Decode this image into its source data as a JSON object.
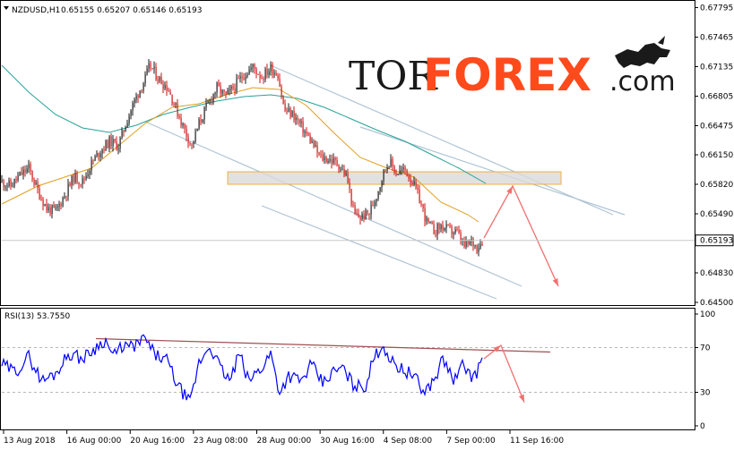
{
  "header": {
    "symbol": "NZDUSD,H1",
    "ohlc": "0.65155 0.65207 0.65146 0.65193"
  },
  "logo": {
    "tor": "TOR",
    "forex": "FOREX",
    "com": ".com"
  },
  "rsi_header": "RSI(13) 53.7550",
  "colors": {
    "bull": "#1a1a1a",
    "bear": "#cc1111",
    "ma_slow": "#2aa198",
    "ma_fast": "#e0a020",
    "rsi": "#0000ff",
    "channel": "#b0c4d4",
    "arrow": "#f07070",
    "zone_fill": "#d9d9d9",
    "zone_border": "#f0b040",
    "rsi_trend": "#a05050",
    "logo_orange": "#ff4a1c"
  },
  "chart_data": [
    {
      "type": "candlestick",
      "title": "NZDUSD,H1",
      "price_axis_ticks": [
        "0.67795",
        "0.67465",
        "0.67135",
        "0.66805",
        "0.66475",
        "0.66150",
        "0.65820",
        "0.65490",
        "0.65193",
        "0.64830",
        "0.64500"
      ],
      "current_price": "0.65193",
      "x_tick_labels": [
        "13 Aug 2018",
        "16 Aug 00:00",
        "20 Aug 16:00",
        "23 Aug 08:00",
        "28 Aug 00:00",
        "30 Aug 16:00",
        "4 Sep 08:00",
        "7 Sep 00:00",
        "11 Sep 16:00"
      ],
      "ylim": [
        0.645,
        0.678
      ],
      "price_path": [
        [
          0,
          0.6585
        ],
        [
          10,
          0.658
        ],
        [
          20,
          0.6592
        ],
        [
          30,
          0.66
        ],
        [
          40,
          0.6575
        ],
        [
          50,
          0.6555
        ],
        [
          60,
          0.6552
        ],
        [
          70,
          0.657
        ],
        [
          80,
          0.659
        ],
        [
          90,
          0.6585
        ],
        [
          100,
          0.6605
        ],
        [
          110,
          0.662
        ],
        [
          120,
          0.663
        ],
        [
          130,
          0.6625
        ],
        [
          140,
          0.6655
        ],
        [
          150,
          0.668
        ],
        [
          160,
          0.67
        ],
        [
          165,
          0.6715
        ],
        [
          175,
          0.67
        ],
        [
          185,
          0.669
        ],
        [
          195,
          0.6665
        ],
        [
          205,
          0.664
        ],
        [
          212,
          0.6625
        ],
        [
          220,
          0.665
        ],
        [
          230,
          0.6672
        ],
        [
          240,
          0.669
        ],
        [
          250,
          0.668
        ],
        [
          260,
          0.6692
        ],
        [
          270,
          0.6705
        ],
        [
          280,
          0.6713
        ],
        [
          290,
          0.6702
        ],
        [
          300,
          0.6712
        ],
        [
          308,
          0.6705
        ],
        [
          315,
          0.6665
        ],
        [
          325,
          0.666
        ],
        [
          335,
          0.6645
        ],
        [
          345,
          0.663
        ],
        [
          355,
          0.6612
        ],
        [
          365,
          0.661
        ],
        [
          375,
          0.6605
        ],
        [
          385,
          0.659
        ],
        [
          393,
          0.6548
        ],
        [
          400,
          0.6545
        ],
        [
          410,
          0.655
        ],
        [
          418,
          0.657
        ],
        [
          426,
          0.6595
        ],
        [
          432,
          0.6608
        ],
        [
          440,
          0.6595
        ],
        [
          450,
          0.6598
        ],
        [
          458,
          0.6585
        ],
        [
          466,
          0.6565
        ],
        [
          474,
          0.654
        ],
        [
          482,
          0.653
        ],
        [
          490,
          0.6535
        ],
        [
          500,
          0.653
        ],
        [
          508,
          0.6528
        ],
        [
          516,
          0.6512
        ],
        [
          524,
          0.6518
        ],
        [
          530,
          0.6512
        ],
        [
          536,
          0.6519
        ]
      ],
      "ma_slow": [
        [
          0,
          0.6715
        ],
        [
          30,
          0.6685
        ],
        [
          60,
          0.666
        ],
        [
          90,
          0.6645
        ],
        [
          120,
          0.664
        ],
        [
          150,
          0.6648
        ],
        [
          180,
          0.666
        ],
        [
          210,
          0.6668
        ],
        [
          240,
          0.6675
        ],
        [
          270,
          0.668
        ],
        [
          300,
          0.6682
        ],
        [
          330,
          0.6678
        ],
        [
          360,
          0.6668
        ],
        [
          390,
          0.6655
        ],
        [
          420,
          0.6642
        ],
        [
          450,
          0.663
        ],
        [
          480,
          0.6615
        ],
        [
          510,
          0.66
        ],
        [
          540,
          0.6583
        ]
      ],
      "ma_fast": [
        [
          0,
          0.656
        ],
        [
          40,
          0.658
        ],
        [
          70,
          0.659
        ],
        [
          100,
          0.66
        ],
        [
          130,
          0.6625
        ],
        [
          160,
          0.665
        ],
        [
          190,
          0.6668
        ],
        [
          220,
          0.6672
        ],
        [
          250,
          0.6682
        ],
        [
          280,
          0.669
        ],
        [
          310,
          0.6688
        ],
        [
          340,
          0.667
        ],
        [
          370,
          0.664
        ],
        [
          400,
          0.6612
        ],
        [
          430,
          0.66
        ],
        [
          460,
          0.659
        ],
        [
          490,
          0.6562
        ],
        [
          520,
          0.6548
        ],
        [
          532,
          0.654
        ]
      ],
      "resistance_zone": [
        0.6582,
        0.6596
      ],
      "forecast": [
        [
          538,
          0.6522
        ],
        [
          570,
          0.658
        ],
        [
          621,
          0.6468
        ]
      ]
    },
    {
      "type": "line",
      "title": "RSI(13) 53.7550",
      "y_ticks": [
        "100",
        "70",
        "30",
        "0"
      ],
      "ylim": [
        0,
        100
      ],
      "levels": [
        70,
        30
      ],
      "rsi_path": [
        [
          0,
          55
        ],
        [
          15,
          48
        ],
        [
          30,
          62
        ],
        [
          45,
          40
        ],
        [
          60,
          47
        ],
        [
          75,
          65
        ],
        [
          90,
          60
        ],
        [
          105,
          70
        ],
        [
          115,
          77
        ],
        [
          125,
          62
        ],
        [
          135,
          72
        ],
        [
          145,
          70
        ],
        [
          160,
          78
        ],
        [
          170,
          64
        ],
        [
          185,
          58
        ],
        [
          195,
          38
        ],
        [
          210,
          20
        ],
        [
          220,
          56
        ],
        [
          232,
          72
        ],
        [
          245,
          50
        ],
        [
          255,
          40
        ],
        [
          265,
          65
        ],
        [
          275,
          40
        ],
        [
          290,
          52
        ],
        [
          300,
          65
        ],
        [
          310,
          30
        ],
        [
          320,
          45
        ],
        [
          335,
          40
        ],
        [
          345,
          55
        ],
        [
          358,
          38
        ],
        [
          370,
          48
        ],
        [
          380,
          52
        ],
        [
          392,
          37
        ],
        [
          405,
          34
        ],
        [
          415,
          60
        ],
        [
          425,
          73
        ],
        [
          435,
          57
        ],
        [
          448,
          50
        ],
        [
          460,
          45
        ],
        [
          470,
          30
        ],
        [
          482,
          40
        ],
        [
          492,
          60
        ],
        [
          505,
          40
        ],
        [
          515,
          55
        ],
        [
          527,
          42
        ],
        [
          536,
          60
        ]
      ],
      "trendline": [
        [
          105,
          78
        ],
        [
          612,
          66
        ]
      ],
      "forecast": [
        [
          538,
          60
        ],
        [
          557,
          72
        ],
        [
          583,
          21
        ]
      ]
    }
  ]
}
